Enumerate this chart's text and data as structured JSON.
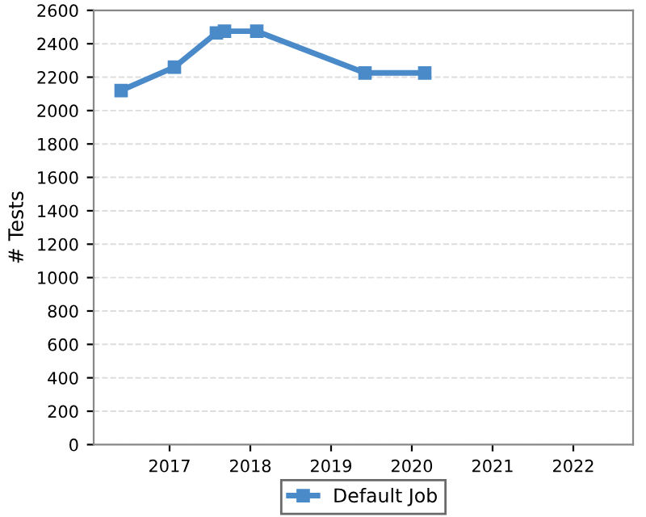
{
  "chart_data": {
    "type": "line",
    "ylabel": "# Tests",
    "x": [
      2016.4,
      2017.06,
      2017.58,
      2017.68,
      2018.08,
      2019.42,
      2020.16
    ],
    "series": [
      {
        "name": "Default Job",
        "color": "#4a8ac9",
        "values": [
          2120,
          2260,
          2465,
          2475,
          2475,
          2225,
          2225
        ]
      }
    ],
    "xlim": [
      2016.06,
      2022.74
    ],
    "xticks": [
      2017,
      2018,
      2019,
      2020,
      2021,
      2022
    ],
    "ylim": [
      0,
      2600
    ],
    "yticks": [
      0,
      200,
      400,
      600,
      800,
      1000,
      1200,
      1400,
      1600,
      1800,
      2000,
      2200,
      2400,
      2600
    ],
    "grid": "y",
    "legend": "bottom",
    "marker": "square",
    "line_style": "solid"
  }
}
